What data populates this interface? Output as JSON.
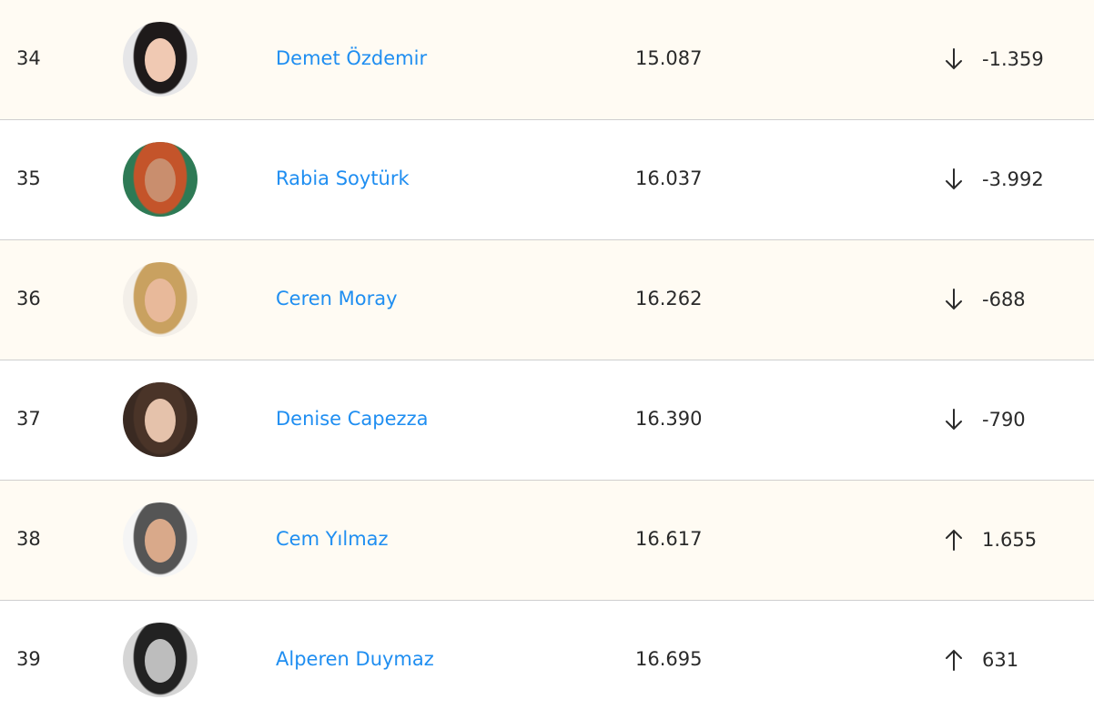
{
  "rows": [
    {
      "rank": "34",
      "name": "Demet Özdemir",
      "score": "15.087",
      "trend": "down",
      "change": "-1.359",
      "hair": "#1e1a1a",
      "skin": "#f0c9b3",
      "bg": "#e6e6e8"
    },
    {
      "rank": "35",
      "name": "Rabia Soytürk",
      "score": "16.037",
      "trend": "down",
      "change": "-3.992",
      "hair": "#c4542a",
      "skin": "#c98e6e",
      "bg": "#2e7a55"
    },
    {
      "rank": "36",
      "name": "Ceren Moray",
      "score": "16.262",
      "trend": "down",
      "change": "-688",
      "hair": "#c9a160",
      "skin": "#e8b99a",
      "bg": "#f3efe9"
    },
    {
      "rank": "37",
      "name": "Denise Capezza",
      "score": "16.390",
      "trend": "down",
      "change": "-790",
      "hair": "#4a3428",
      "skin": "#e5c2ab",
      "bg": "#3a2a22"
    },
    {
      "rank": "38",
      "name": "Cem Yılmaz",
      "score": "16.617",
      "trend": "up",
      "change": "1.655",
      "hair": "#555",
      "skin": "#d9a98a",
      "bg": "#f5f5f5"
    },
    {
      "rank": "39",
      "name": "Alperen Duymaz",
      "score": "16.695",
      "trend": "up",
      "change": "631",
      "hair": "#222",
      "skin": "#bdbdbd",
      "bg": "#d5d5d5"
    }
  ]
}
